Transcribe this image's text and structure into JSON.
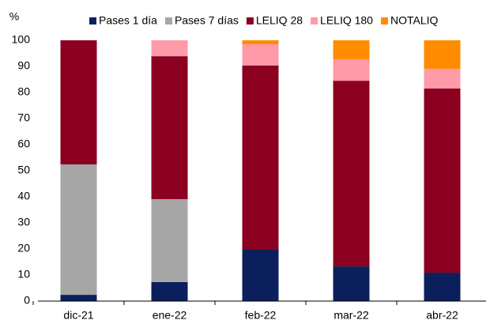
{
  "chart_data": {
    "type": "bar",
    "stacked": true,
    "y_label": "%",
    "categories": [
      "dic-21",
      "ene-22",
      "feb-22",
      "mar-22",
      "abr-22"
    ],
    "series": [
      {
        "name": "Pases 1 día",
        "color": "#0b1f5c",
        "values": [
          2.4,
          7.3,
          19.7,
          13.3,
          10.9
        ]
      },
      {
        "name": "Pases 7 días",
        "color": "#a6a6a6",
        "values": [
          50.0,
          31.8,
          0,
          0,
          0
        ]
      },
      {
        "name": "LELIQ 28",
        "color": "#8b0021",
        "values": [
          47.6,
          54.8,
          70.6,
          71.2,
          70.6
        ]
      },
      {
        "name": "LELIQ 180",
        "color": "#ff9aa8",
        "values": [
          0,
          6.1,
          8.2,
          8.2,
          7.6
        ]
      },
      {
        "name": "NOTALIQ",
        "color": "#ff8c00",
        "values": [
          0,
          0,
          1.5,
          7.3,
          10.9
        ]
      }
    ],
    "ylim": [
      0,
      100
    ],
    "yticks": [
      0,
      10,
      20,
      30,
      40,
      50,
      60,
      70,
      80,
      90,
      100
    ],
    "legend": "top"
  }
}
